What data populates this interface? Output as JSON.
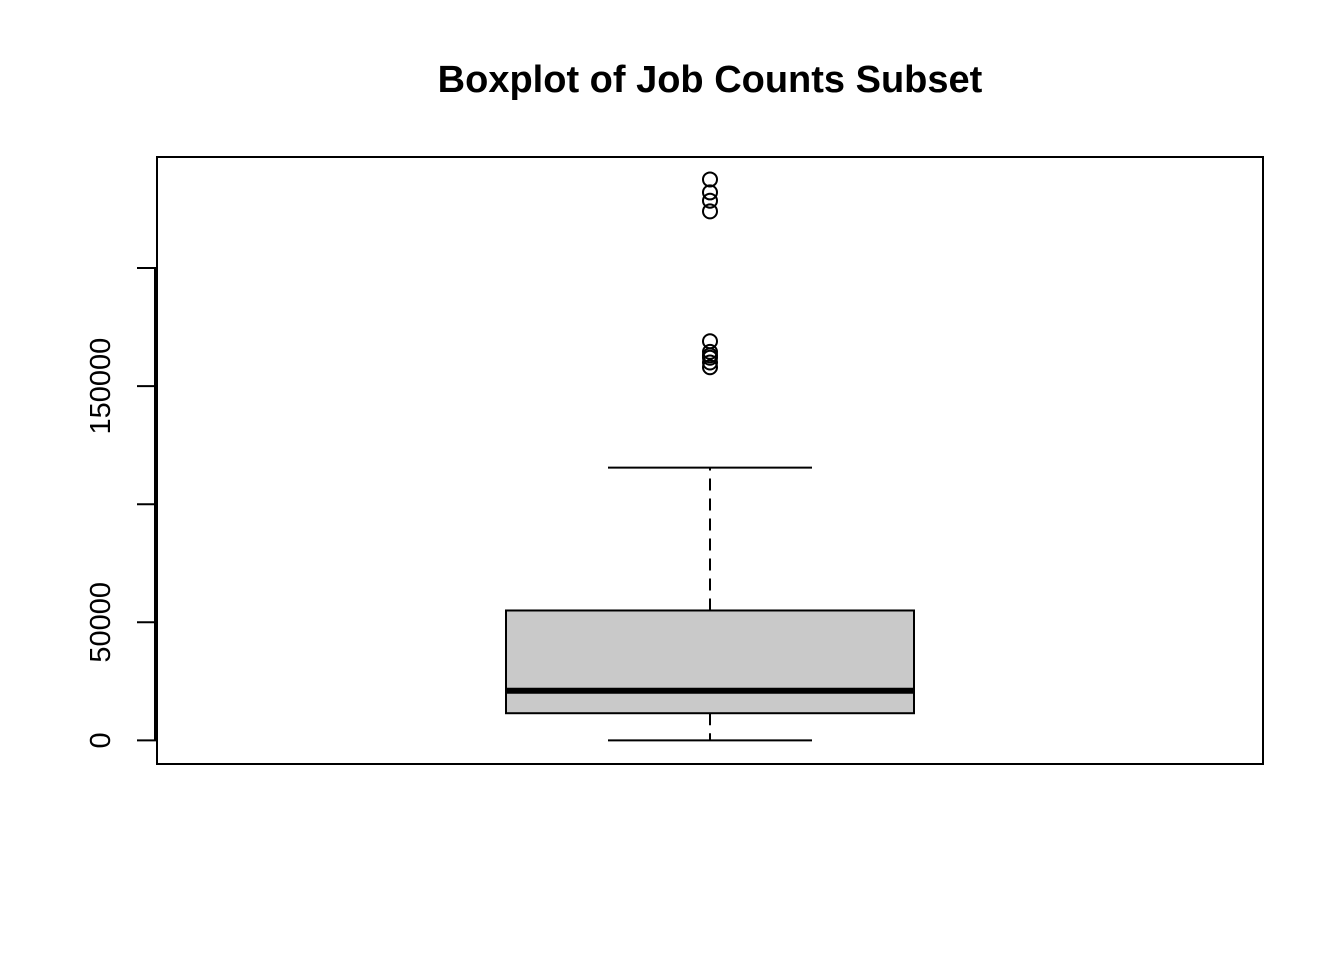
{
  "chart_data": {
    "type": "boxplot",
    "title": "Boxplot of Job Counts Subset",
    "xlabel": "",
    "ylabel": "",
    "ylim": [
      -10000,
      247000
    ],
    "y_ticks": [
      0,
      50000,
      100000,
      150000,
      200000
    ],
    "y_tick_labels": [
      "0",
      "50000",
      "",
      "150000",
      ""
    ],
    "box": {
      "min": 0,
      "q1": 11500,
      "median": 21000,
      "q3": 55000,
      "max": 115500
    },
    "outliers": [
      158000,
      160000,
      162000,
      163000,
      164500,
      169000,
      224000,
      228500,
      232000,
      237500
    ],
    "fill_color": "#c9c9c9",
    "grid": false
  }
}
